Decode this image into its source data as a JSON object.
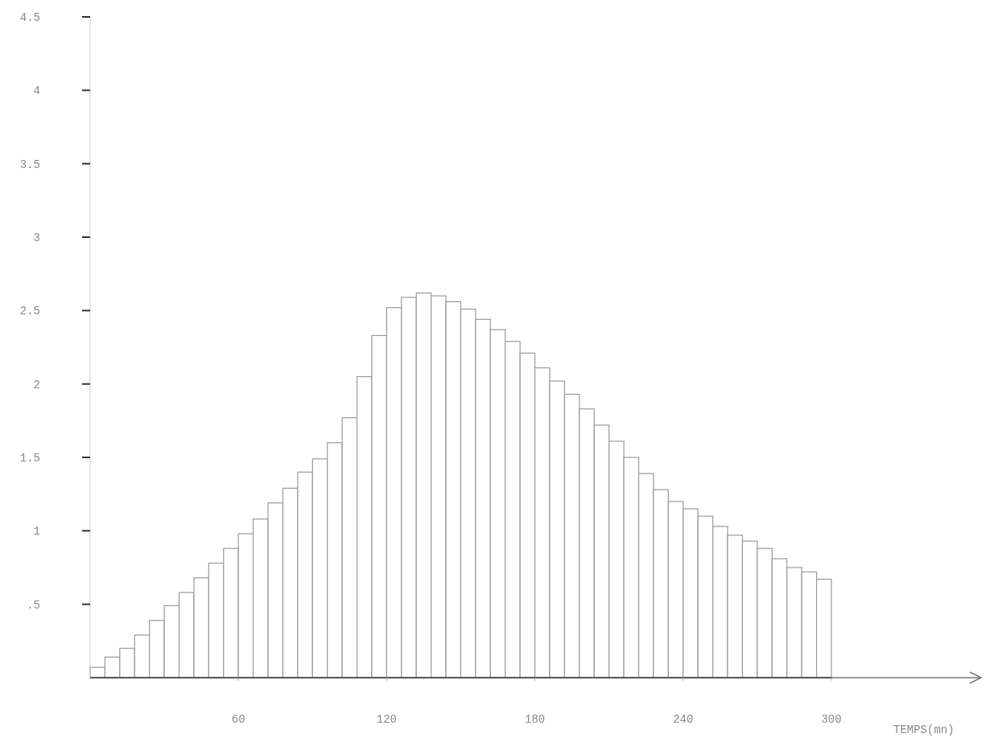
{
  "chart_data": {
    "type": "histogram",
    "xlabel": "TEMPS(mn)",
    "bins": [
      0,
      6,
      12,
      18,
      24,
      30,
      36,
      42,
      48,
      54,
      60,
      66,
      72,
      78,
      84,
      90,
      96,
      102,
      108,
      114,
      120,
      126,
      132,
      138,
      144,
      150,
      156,
      162,
      168,
      174,
      180,
      186,
      192,
      198,
      204,
      210,
      216,
      222,
      228,
      234,
      240,
      246,
      252,
      258,
      264,
      270,
      276,
      282,
      288,
      294,
      300
    ],
    "values": [
      0.07,
      0.14,
      0.2,
      0.29,
      0.39,
      0.49,
      0.58,
      0.68,
      0.78,
      0.88,
      0.98,
      1.08,
      1.19,
      1.29,
      1.4,
      1.49,
      1.6,
      1.77,
      2.05,
      2.33,
      2.52,
      2.59,
      2.62,
      2.6,
      2.56,
      2.51,
      2.44,
      2.37,
      2.29,
      2.21,
      2.11,
      2.02,
      1.93,
      1.83,
      1.72,
      1.61,
      1.5,
      1.39,
      1.28,
      1.2,
      1.15,
      1.1,
      1.03,
      0.97,
      0.93,
      0.88,
      0.81,
      0.75,
      0.72,
      0.67
    ],
    "color": "#9a9a9a",
    "xlim": [
      0,
      300
    ],
    "xticks": [
      60,
      120,
      180,
      240,
      300
    ],
    "ylim": [
      0,
      4.5
    ],
    "yticks": [
      {
        "value": 0.5,
        "label": ".5"
      },
      1,
      1.5,
      2,
      2.5,
      3,
      3.5,
      4,
      4.5
    ],
    "grid": false,
    "legend": false
  }
}
